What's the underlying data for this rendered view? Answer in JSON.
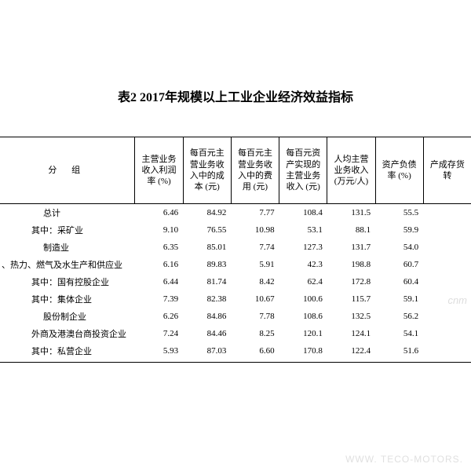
{
  "title": "表2  2017年规模以上工业企业经济效益指标",
  "table": {
    "group_header": "分  组",
    "columns": [
      "主营业务收入利润率\n(%)",
      "每百元主营业务收入中的成本\n(元)",
      "每百元主营业务收入中的费用\n(元)",
      "每百元资产实现的主营业务收入\n(元)",
      "人均主营业务收入\n(万元/人)",
      "资产负债率\n(%)",
      "产成存货转"
    ],
    "rows": [
      {
        "label": "总计",
        "indent": 1,
        "values": [
          "6.46",
          "84.92",
          "7.77",
          "108.4",
          "131.5",
          "55.5",
          ""
        ]
      },
      {
        "label": "其中：采矿业",
        "indent": 0,
        "values": [
          "9.10",
          "76.55",
          "10.98",
          "53.1",
          "88.1",
          "59.9",
          ""
        ]
      },
      {
        "label": "制造业",
        "indent": 1,
        "values": [
          "6.35",
          "85.01",
          "7.74",
          "127.3",
          "131.7",
          "54.0",
          ""
        ]
      },
      {
        "label": "、热力、燃气及水生产和供应业",
        "indent": -1,
        "values": [
          "6.16",
          "89.83",
          "5.91",
          "42.3",
          "198.8",
          "60.7",
          ""
        ]
      },
      {
        "label": "其中：国有控股企业",
        "indent": 0,
        "values": [
          "6.44",
          "81.74",
          "8.42",
          "62.4",
          "172.8",
          "60.4",
          ""
        ]
      },
      {
        "label": "其中：集体企业",
        "indent": 0,
        "values": [
          "7.39",
          "82.38",
          "10.67",
          "100.6",
          "115.7",
          "59.1",
          ""
        ]
      },
      {
        "label": "股份制企业",
        "indent": 1,
        "values": [
          "6.26",
          "84.86",
          "7.78",
          "108.6",
          "132.5",
          "56.2",
          ""
        ]
      },
      {
        "label": "外商及港澳台商投资企业",
        "indent": 0,
        "values": [
          "7.24",
          "84.46",
          "8.25",
          "120.1",
          "124.1",
          "54.1",
          ""
        ]
      },
      {
        "label": "其中：私营企业",
        "indent": 0,
        "values": [
          "5.93",
          "87.03",
          "6.60",
          "170.8",
          "122.4",
          "51.6",
          ""
        ]
      }
    ]
  },
  "watermark1": "cnm",
  "watermark2": "WWW. TECO-MOTORS."
}
